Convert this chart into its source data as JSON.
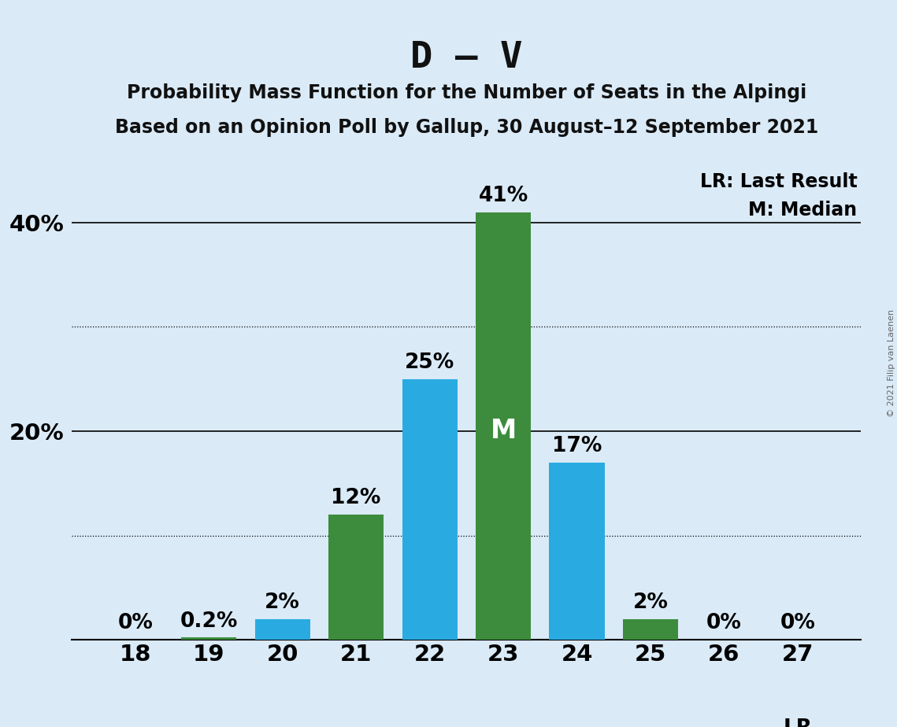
{
  "title": "D – V",
  "subtitle1": "Probability Mass Function for the Number of Seats in the Alpingi",
  "subtitle2": "Based on an Opinion Poll by Gallup, 30 August–12 September 2021",
  "copyright": "© 2021 Filip van Laenen",
  "categories": [
    18,
    19,
    20,
    21,
    22,
    23,
    24,
    25,
    26,
    27
  ],
  "values": [
    0,
    0.2,
    2,
    12,
    25,
    41,
    17,
    2,
    0,
    0
  ],
  "bar_colors": [
    "#3d8c3d",
    "#3d8c3d",
    "#29abe2",
    "#3d8c3d",
    "#29abe2",
    "#3d8c3d",
    "#29abe2",
    "#3d8c3d",
    "#3d8c3d",
    "#3d8c3d"
  ],
  "median_seat": 23,
  "lr_seat": 27,
  "background_color": "#daeaf7",
  "plot_bg_color": "#daeaf7",
  "title_fontsize": 34,
  "subtitle_fontsize": 17,
  "tick_fontsize": 21,
  "legend_fontsize": 17,
  "bar_label_fontsize": 19,
  "ylim": [
    0,
    46
  ],
  "yticks": [
    0,
    10,
    20,
    30,
    40
  ],
  "ytick_labels": [
    "",
    "",
    "20%",
    "",
    "40%"
  ],
  "solid_yticks": [
    20,
    40
  ],
  "dotted_yticks": [
    10,
    30
  ],
  "legend_text_lr": "LR: Last Result",
  "legend_text_m": "M: Median"
}
